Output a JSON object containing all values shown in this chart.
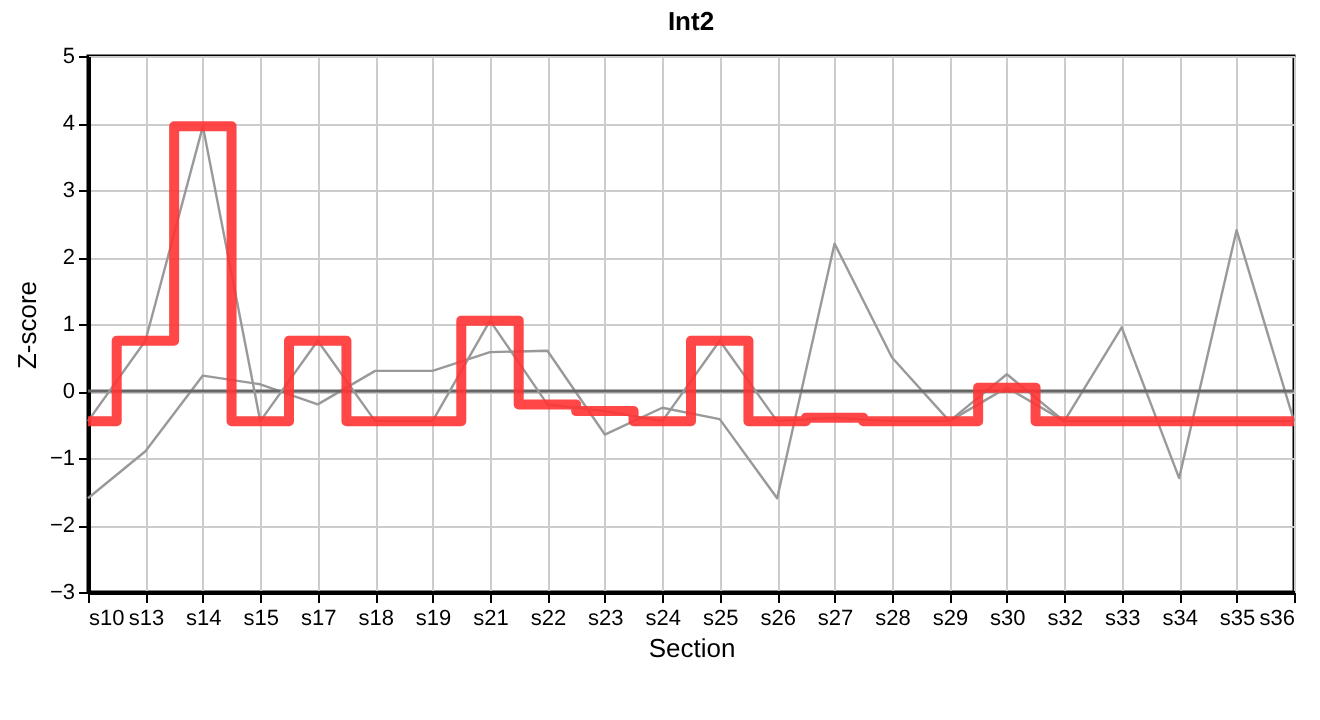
{
  "chart_data": {
    "type": "line",
    "title": "Int2",
    "xlabel": "Section",
    "ylabel": "Z-score",
    "categories": [
      "s10",
      "s13",
      "s14",
      "s15",
      "s17",
      "s18",
      "s19",
      "s21",
      "s22",
      "s23",
      "s24",
      "s25",
      "s26",
      "s27",
      "s28",
      "s29",
      "s30",
      "s32",
      "s33",
      "s34",
      "s35",
      "s36"
    ],
    "series": [
      {
        "type": "line",
        "color": "#999999",
        "values": [
          -1.6,
          -0.9,
          0.23,
          0.1,
          -0.2,
          0.3,
          0.3,
          0.58,
          0.6,
          -0.65,
          -0.25,
          -0.42,
          -1.6,
          2.2,
          0.5,
          -0.45,
          0.25,
          -0.45,
          0.95,
          -1.3,
          2.4,
          -0.45
        ]
      },
      {
        "type": "line",
        "color": "#999999",
        "values": [
          -0.45,
          0.75,
          3.95,
          -0.45,
          0.75,
          -0.45,
          -0.45,
          1.05,
          -0.2,
          -0.3,
          -0.45,
          0.75,
          -0.45,
          -0.4,
          -0.45,
          -0.45,
          0.05,
          -0.45,
          -0.45,
          -0.45,
          -0.45,
          -0.45
        ]
      },
      {
        "type": "step",
        "color": "#ff3333",
        "values": [
          -0.45,
          0.75,
          3.95,
          -0.45,
          0.75,
          -0.45,
          -0.45,
          1.05,
          -0.2,
          -0.3,
          -0.45,
          0.75,
          -0.45,
          -0.4,
          -0.45,
          -0.45,
          0.05,
          -0.45,
          -0.45,
          -0.45,
          -0.45,
          -0.45
        ]
      }
    ],
    "ylim": [
      -3,
      5
    ],
    "yticks": [
      -3,
      -2,
      -1,
      0,
      1,
      2,
      3,
      4,
      5
    ],
    "ref_lines": [
      {
        "axis": "y",
        "value": 0,
        "color": "#666666"
      }
    ],
    "grid": true,
    "legend": false,
    "marker": "none",
    "line_style": "solid"
  }
}
